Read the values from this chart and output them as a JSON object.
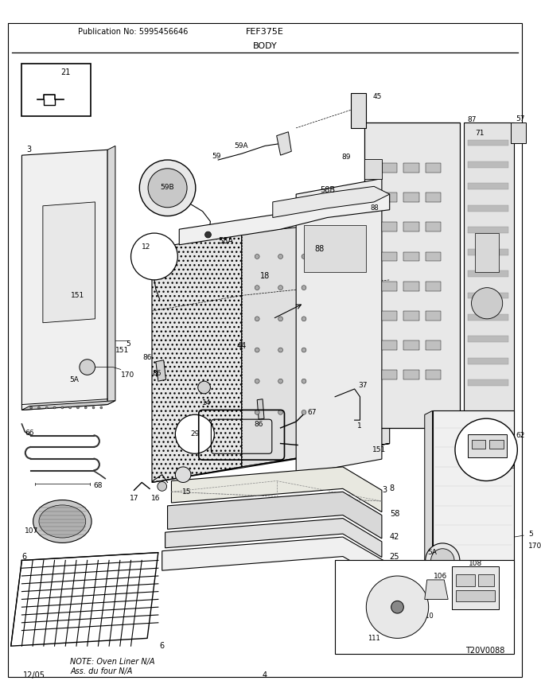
{
  "title": "FEF375E",
  "subtitle": "BODY",
  "publication": "Publication No: 5995456646",
  "date": "12/05",
  "page": "4",
  "diagram_ref": "T20V0088",
  "note_line1": "NOTE: Oven Liner N/A",
  "note_line2": "Ass. du four N/A",
  "bg_color": "#ffffff",
  "text_color": "#000000",
  "line_color": "#222222",
  "fig_width": 6.8,
  "fig_height": 8.8,
  "dpi": 100
}
